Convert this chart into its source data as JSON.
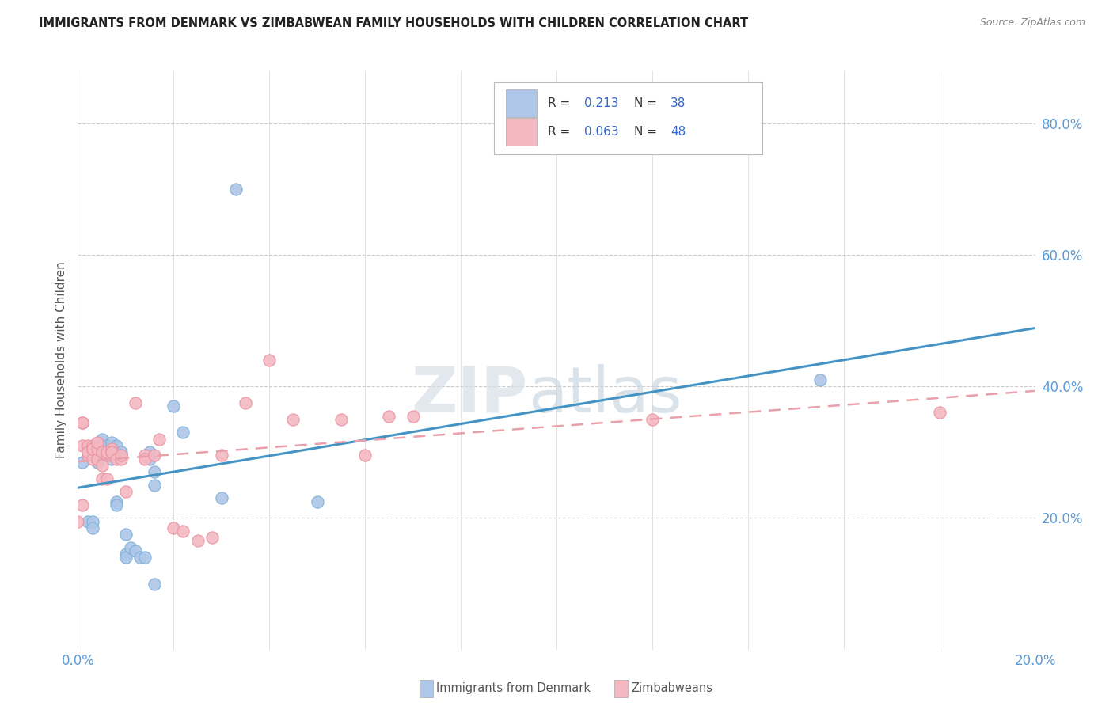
{
  "title": "IMMIGRANTS FROM DENMARK VS ZIMBABWEAN FAMILY HOUSEHOLDS WITH CHILDREN CORRELATION CHART",
  "source": "Source: ZipAtlas.com",
  "ylabel": "Family Households with Children",
  "ytick_values": [
    0.2,
    0.4,
    0.6,
    0.8
  ],
  "watermark_text": "ZIPatlas",
  "denmark_scatter": [
    [
      0.001,
      0.285
    ],
    [
      0.002,
      0.195
    ],
    [
      0.003,
      0.195
    ],
    [
      0.003,
      0.185
    ],
    [
      0.004,
      0.285
    ],
    [
      0.004,
      0.295
    ],
    [
      0.005,
      0.31
    ],
    [
      0.005,
      0.32
    ],
    [
      0.005,
      0.3
    ],
    [
      0.006,
      0.295
    ],
    [
      0.006,
      0.3
    ],
    [
      0.006,
      0.31
    ],
    [
      0.007,
      0.3
    ],
    [
      0.007,
      0.315
    ],
    [
      0.007,
      0.29
    ],
    [
      0.008,
      0.225
    ],
    [
      0.008,
      0.22
    ],
    [
      0.008,
      0.31
    ],
    [
      0.009,
      0.295
    ],
    [
      0.009,
      0.3
    ],
    [
      0.01,
      0.175
    ],
    [
      0.01,
      0.145
    ],
    [
      0.01,
      0.14
    ],
    [
      0.011,
      0.155
    ],
    [
      0.012,
      0.15
    ],
    [
      0.013,
      0.14
    ],
    [
      0.014,
      0.14
    ],
    [
      0.015,
      0.3
    ],
    [
      0.015,
      0.29
    ],
    [
      0.016,
      0.27
    ],
    [
      0.016,
      0.25
    ],
    [
      0.016,
      0.1
    ],
    [
      0.02,
      0.37
    ],
    [
      0.022,
      0.33
    ],
    [
      0.03,
      0.23
    ],
    [
      0.033,
      0.7
    ],
    [
      0.05,
      0.225
    ],
    [
      0.155,
      0.41
    ]
  ],
  "zimbabwe_scatter": [
    [
      0.0,
      0.195
    ],
    [
      0.001,
      0.345
    ],
    [
      0.001,
      0.345
    ],
    [
      0.001,
      0.22
    ],
    [
      0.001,
      0.31
    ],
    [
      0.002,
      0.295
    ],
    [
      0.002,
      0.31
    ],
    [
      0.002,
      0.295
    ],
    [
      0.002,
      0.3
    ],
    [
      0.003,
      0.31
    ],
    [
      0.003,
      0.29
    ],
    [
      0.003,
      0.305
    ],
    [
      0.003,
      0.305
    ],
    [
      0.004,
      0.29
    ],
    [
      0.004,
      0.305
    ],
    [
      0.004,
      0.315
    ],
    [
      0.005,
      0.3
    ],
    [
      0.005,
      0.28
    ],
    [
      0.005,
      0.26
    ],
    [
      0.006,
      0.295
    ],
    [
      0.006,
      0.3
    ],
    [
      0.006,
      0.26
    ],
    [
      0.007,
      0.305
    ],
    [
      0.007,
      0.3
    ],
    [
      0.007,
      0.3
    ],
    [
      0.008,
      0.29
    ],
    [
      0.009,
      0.29
    ],
    [
      0.009,
      0.295
    ],
    [
      0.01,
      0.24
    ],
    [
      0.012,
      0.375
    ],
    [
      0.014,
      0.295
    ],
    [
      0.014,
      0.29
    ],
    [
      0.016,
      0.295
    ],
    [
      0.017,
      0.32
    ],
    [
      0.02,
      0.185
    ],
    [
      0.022,
      0.18
    ],
    [
      0.025,
      0.165
    ],
    [
      0.028,
      0.17
    ],
    [
      0.03,
      0.295
    ],
    [
      0.035,
      0.375
    ],
    [
      0.04,
      0.44
    ],
    [
      0.045,
      0.35
    ],
    [
      0.055,
      0.35
    ],
    [
      0.06,
      0.295
    ],
    [
      0.065,
      0.355
    ],
    [
      0.07,
      0.355
    ],
    [
      0.12,
      0.35
    ],
    [
      0.18,
      0.36
    ]
  ],
  "denmark_line_color": "#4393c3",
  "zimbabwe_line_color": "#e8a0aa",
  "denmark_scatter_color": "#aec6e8",
  "zimbabwe_scatter_color": "#f4b8c1",
  "denmark_edge_color": "#7aafd4",
  "zimbabwe_edge_color": "#e890a0",
  "text_blue": "#3366cc",
  "text_dark": "#222222",
  "axis_color": "#5b9bd5",
  "grid_color": "#cccccc",
  "xmin": 0.0,
  "xmax": 0.2,
  "ymin": 0.0,
  "ymax": 0.88,
  "legend_R": [
    "0.213",
    "0.063"
  ],
  "legend_N": [
    "38",
    "48"
  ],
  "bottom_legend": [
    "Immigrants from Denmark",
    "Zimbabweans"
  ]
}
